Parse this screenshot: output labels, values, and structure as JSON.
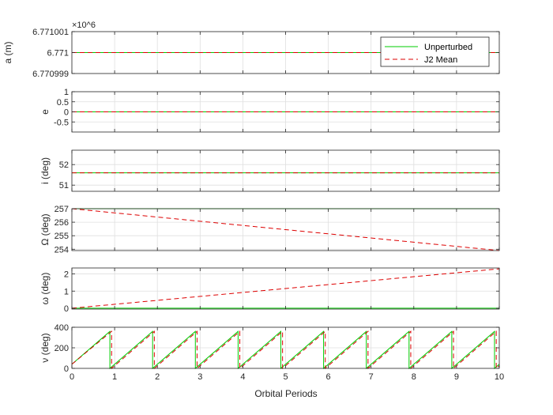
{
  "chart_data": {
    "type": "line",
    "xlabel": "Orbital Periods",
    "xlim": [
      0,
      10
    ],
    "xticks": [
      0,
      1,
      2,
      3,
      4,
      5,
      6,
      7,
      8,
      9,
      10
    ],
    "grid": true,
    "legend": {
      "placement": "top-right",
      "entries": [
        {
          "name": "Unperturbed",
          "color": "#00cc00",
          "style": "solid"
        },
        {
          "name": "J2 Mean",
          "color": "#dd0000",
          "style": "dashed"
        }
      ]
    },
    "subplots": [
      {
        "id": "a",
        "ylabel": "a (m)",
        "exponent_label": "×10^6",
        "ylim": [
          6.770999,
          6.771001
        ],
        "yticks": [
          6.770999,
          6.771,
          6.771001
        ],
        "ytick_labels": [
          "6.770999",
          "6.771",
          "6.771001"
        ],
        "series": [
          {
            "name": "Unperturbed",
            "x": [
              0,
              10
            ],
            "y": [
              6.771,
              6.771
            ]
          },
          {
            "name": "J2 Mean",
            "x": [
              0,
              10
            ],
            "y": [
              6.771,
              6.771
            ]
          }
        ]
      },
      {
        "id": "e",
        "ylabel": "e",
        "ylim": [
          -1,
          1
        ],
        "yticks": [
          -0.5,
          0,
          0.5,
          1
        ],
        "ytick_labels": [
          "-0.5",
          "0",
          "0.5",
          "1"
        ],
        "series": [
          {
            "name": "Unperturbed",
            "x": [
              0,
              10
            ],
            "y": [
              0,
              0
            ]
          },
          {
            "name": "J2 Mean",
            "x": [
              0,
              10
            ],
            "y": [
              0,
              0
            ]
          }
        ]
      },
      {
        "id": "i",
        "ylabel": "i (deg)",
        "ylim": [
          50.7,
          52.7
        ],
        "yticks": [
          51,
          52
        ],
        "ytick_labels": [
          "51",
          "52"
        ],
        "series": [
          {
            "name": "Unperturbed",
            "x": [
              0,
              10
            ],
            "y": [
              51.6,
              51.6
            ]
          },
          {
            "name": "J2 Mean",
            "x": [
              0,
              10
            ],
            "y": [
              51.6,
              51.6
            ]
          }
        ]
      },
      {
        "id": "raan",
        "ylabel": "Ω (deg)",
        "ylim": [
          253.9,
          257.0
        ],
        "yticks": [
          254,
          255,
          256,
          257
        ],
        "ytick_labels": [
          "254",
          "255",
          "256",
          "257"
        ],
        "series": [
          {
            "name": "Unperturbed",
            "x": [
              0,
              10
            ],
            "y": [
              257.0,
              257.0
            ]
          },
          {
            "name": "J2 Mean",
            "x": [
              0,
              10
            ],
            "y": [
              257.0,
              253.9
            ]
          }
        ]
      },
      {
        "id": "argp",
        "ylabel": "ω (deg)",
        "ylim": [
          -0.05,
          2.35
        ],
        "yticks": [
          0,
          1,
          2
        ],
        "ytick_labels": [
          "0",
          "1",
          "2"
        ],
        "series": [
          {
            "name": "Unperturbed",
            "x": [
              0,
              10
            ],
            "y": [
              0,
              0
            ]
          },
          {
            "name": "J2 Mean",
            "x": [
              0,
              10
            ],
            "y": [
              0,
              2.3
            ]
          }
        ]
      },
      {
        "id": "nu",
        "ylabel": "ν (deg)",
        "ylim": [
          0,
          400
        ],
        "yticks": [
          0,
          200,
          400
        ],
        "ytick_labels": [
          "0",
          "200",
          "400"
        ],
        "sawtooth": {
          "start": 40,
          "slope_deg_per_period": 360,
          "unperturbed_offset": 0,
          "j2_offset": 0.04
        },
        "series": [
          {
            "name": "Unperturbed"
          },
          {
            "name": "J2 Mean"
          }
        ]
      }
    ]
  }
}
